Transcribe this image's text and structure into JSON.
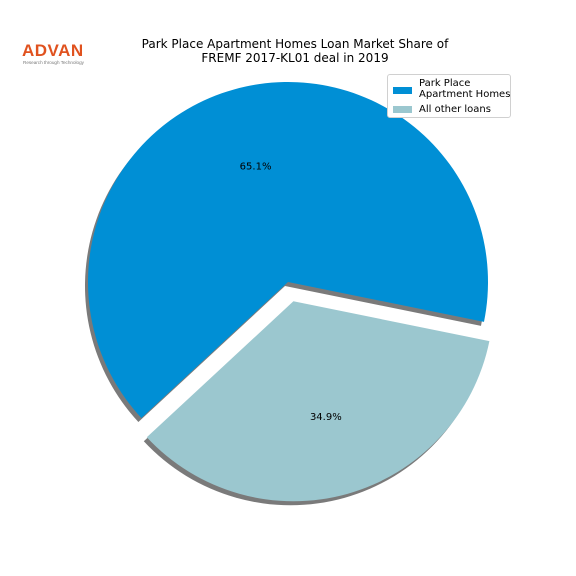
{
  "logo": {
    "word": "ADVAN",
    "tagline": "Research through Technology",
    "color": "#e0521f"
  },
  "chart_data": {
    "type": "pie",
    "title": "Park Place Apartment Homes Loan Market Share of FREMF 2017-KL01 deal in 2019",
    "title_lines": [
      "Park Place Apartment Homes Loan Market Share of",
      "FREMF 2017-KL01 deal in 2019"
    ],
    "slices": [
      {
        "label": "Park Place Apartment Homes",
        "label_lines": [
          "Park Place",
          "Apartment Homes"
        ],
        "value": 65.1,
        "display": "65.1%",
        "color": "#008fd5",
        "exploded": false
      },
      {
        "label": "All other loans",
        "label_lines": [
          "All other loans"
        ],
        "value": 34.9,
        "display": "34.9%",
        "color": "#9bc7cf",
        "exploded": true
      }
    ],
    "legend_position": "top-right",
    "shadow": true
  }
}
